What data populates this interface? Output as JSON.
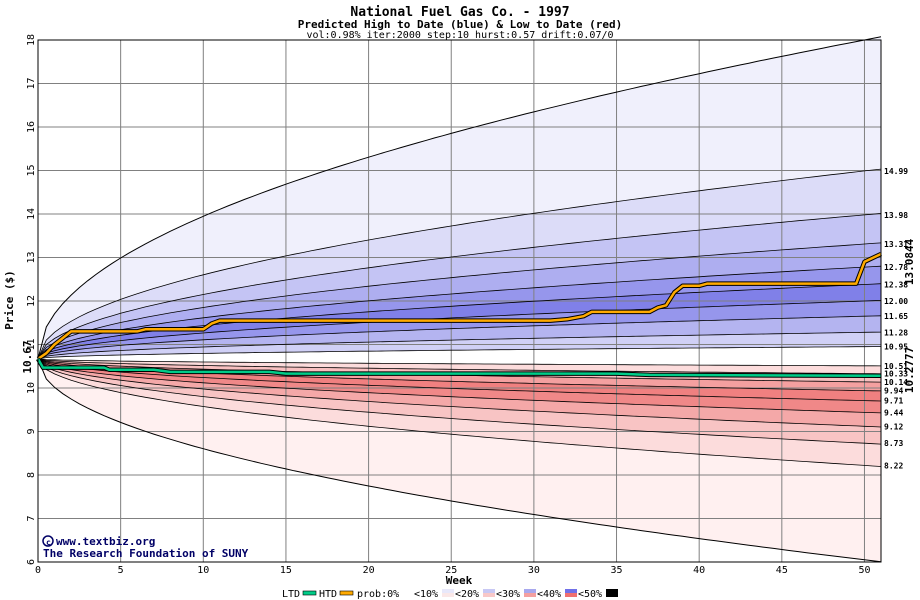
{
  "chart_data": {
    "type": "area",
    "title": "National Fuel Gas Co. - 1997",
    "subtitle": "Predicted High to Date (blue) &  Low to Date (red)",
    "params": "vol:0.98% iter:2000 step:10 hurst:0.57 drift:0.07/0",
    "xlabel": "Week",
    "ylabel": "Price ($)",
    "xlim": [
      0,
      51
    ],
    "ylim": [
      6,
      18
    ],
    "x_ticks": [
      0,
      5,
      10,
      15,
      20,
      25,
      30,
      35,
      40,
      45,
      50
    ],
    "y_ticks": [
      6,
      7,
      8,
      9,
      10,
      11,
      12,
      13,
      14,
      15,
      16,
      17,
      18
    ],
    "grid": true,
    "start_price": 10.67,
    "start_price_label": "10.67",
    "htd_final_label": "13.0844",
    "ltd_final_label": "10.2777",
    "right_labels": [
      "14.99",
      "13.98",
      "13.31",
      "12.78",
      "12.38",
      "12.00",
      "11.65",
      "11.28",
      "10.95",
      "10.51",
      "10.33",
      "10.14",
      "9.94",
      "9.71",
      "9.44",
      "9.12",
      "8.73",
      "8.22"
    ],
    "upper_curve_ends": [
      14.99,
      13.98,
      13.31,
      12.78,
      12.38,
      12.0,
      11.65,
      11.28,
      10.95
    ],
    "lower_curve_ends": [
      10.51,
      10.33,
      10.14,
      9.94,
      9.71,
      9.44,
      9.12,
      8.73,
      8.22
    ],
    "envelope": {
      "high_end": 18.0,
      "low_end": 6.05
    },
    "series": [
      {
        "name": "HTD",
        "color": "#ffaa00",
        "points": [
          [
            0,
            10.67
          ],
          [
            0.5,
            10.8
          ],
          [
            1,
            11.0
          ],
          [
            1.5,
            11.15
          ],
          [
            2,
            11.3
          ],
          [
            3,
            11.3
          ],
          [
            6,
            11.3
          ],
          [
            6.5,
            11.35
          ],
          [
            10,
            11.35
          ],
          [
            10.5,
            11.48
          ],
          [
            11,
            11.55
          ],
          [
            31,
            11.55
          ],
          [
            32,
            11.58
          ],
          [
            33,
            11.65
          ],
          [
            33.5,
            11.75
          ],
          [
            37,
            11.75
          ],
          [
            37.5,
            11.85
          ],
          [
            38,
            11.9
          ],
          [
            38.5,
            12.2
          ],
          [
            39,
            12.35
          ],
          [
            40,
            12.35
          ],
          [
            40.5,
            12.4
          ],
          [
            49.5,
            12.4
          ],
          [
            50,
            12.9
          ],
          [
            51,
            13.08
          ]
        ]
      },
      {
        "name": "LTD",
        "color": "#00cc88",
        "points": [
          [
            0,
            10.67
          ],
          [
            0.3,
            10.47
          ],
          [
            4,
            10.47
          ],
          [
            4.3,
            10.42
          ],
          [
            7,
            10.42
          ],
          [
            8,
            10.37
          ],
          [
            14,
            10.37
          ],
          [
            15,
            10.33
          ],
          [
            35,
            10.33
          ],
          [
            37,
            10.3
          ],
          [
            51,
            10.28
          ]
        ]
      }
    ]
  },
  "credit": {
    "site": "www.textbiz.org",
    "org": "The Research Foundation of SUNY"
  },
  "legend": {
    "ltd": "LTD",
    "htd": "HTD",
    "prob": "prob:0%",
    "items": [
      "<10%",
      "<20%",
      "<30%",
      "<40%",
      "<50%"
    ],
    "blue_swatches": [
      "#ffffff",
      "#e8e8fa",
      "#c8c8f4",
      "#a8a8ee",
      "#7070e8"
    ],
    "red_swatches": [
      "#ffffff",
      "#fae8e8",
      "#f8c8c8",
      "#f4a0a0",
      "#f07070"
    ]
  },
  "colors": {
    "blue_bands": [
      "#f0f0fc",
      "#dcdcf8",
      "#c4c4f4",
      "#aeaef0",
      "#9696ec",
      "#8080e8",
      "#9696ec",
      "#b4b4f0",
      "#d0d0f6"
    ],
    "red_bands": [
      "#fff0f0",
      "#fcdcdc",
      "#f8c4c4",
      "#f4a8a8",
      "#f08888",
      "#f08080",
      "#f4a0a0",
      "#f8c0c0",
      "#fcdcdc"
    ],
    "start_label": "#008800",
    "htd_label": "#aa8800",
    "ltd_label": "#00aa66"
  }
}
